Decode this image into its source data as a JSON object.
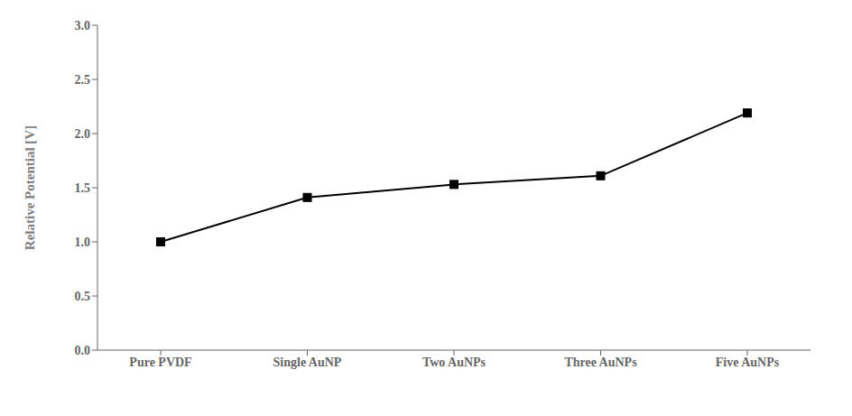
{
  "chart_data": {
    "type": "line",
    "categories": [
      "Pure PVDF",
      "Single AuNP",
      "Two AuNPs",
      "Three AuNPs",
      "Five AuNPs"
    ],
    "values": [
      1.0,
      1.41,
      1.53,
      1.61,
      2.19
    ],
    "ylabel": "Relative Potential [V]",
    "ylim": [
      0.0,
      3.0
    ],
    "yticks": [
      {
        "value": 0,
        "label": "0.0"
      },
      0.5,
      {
        "value": 1,
        "label": "1.0"
      },
      1.5,
      {
        "value": 2,
        "label": "2.0"
      },
      2.5,
      {
        "value": 3,
        "label": "3.0"
      }
    ],
    "color": "#000000",
    "marker": "square",
    "grid": false
  }
}
